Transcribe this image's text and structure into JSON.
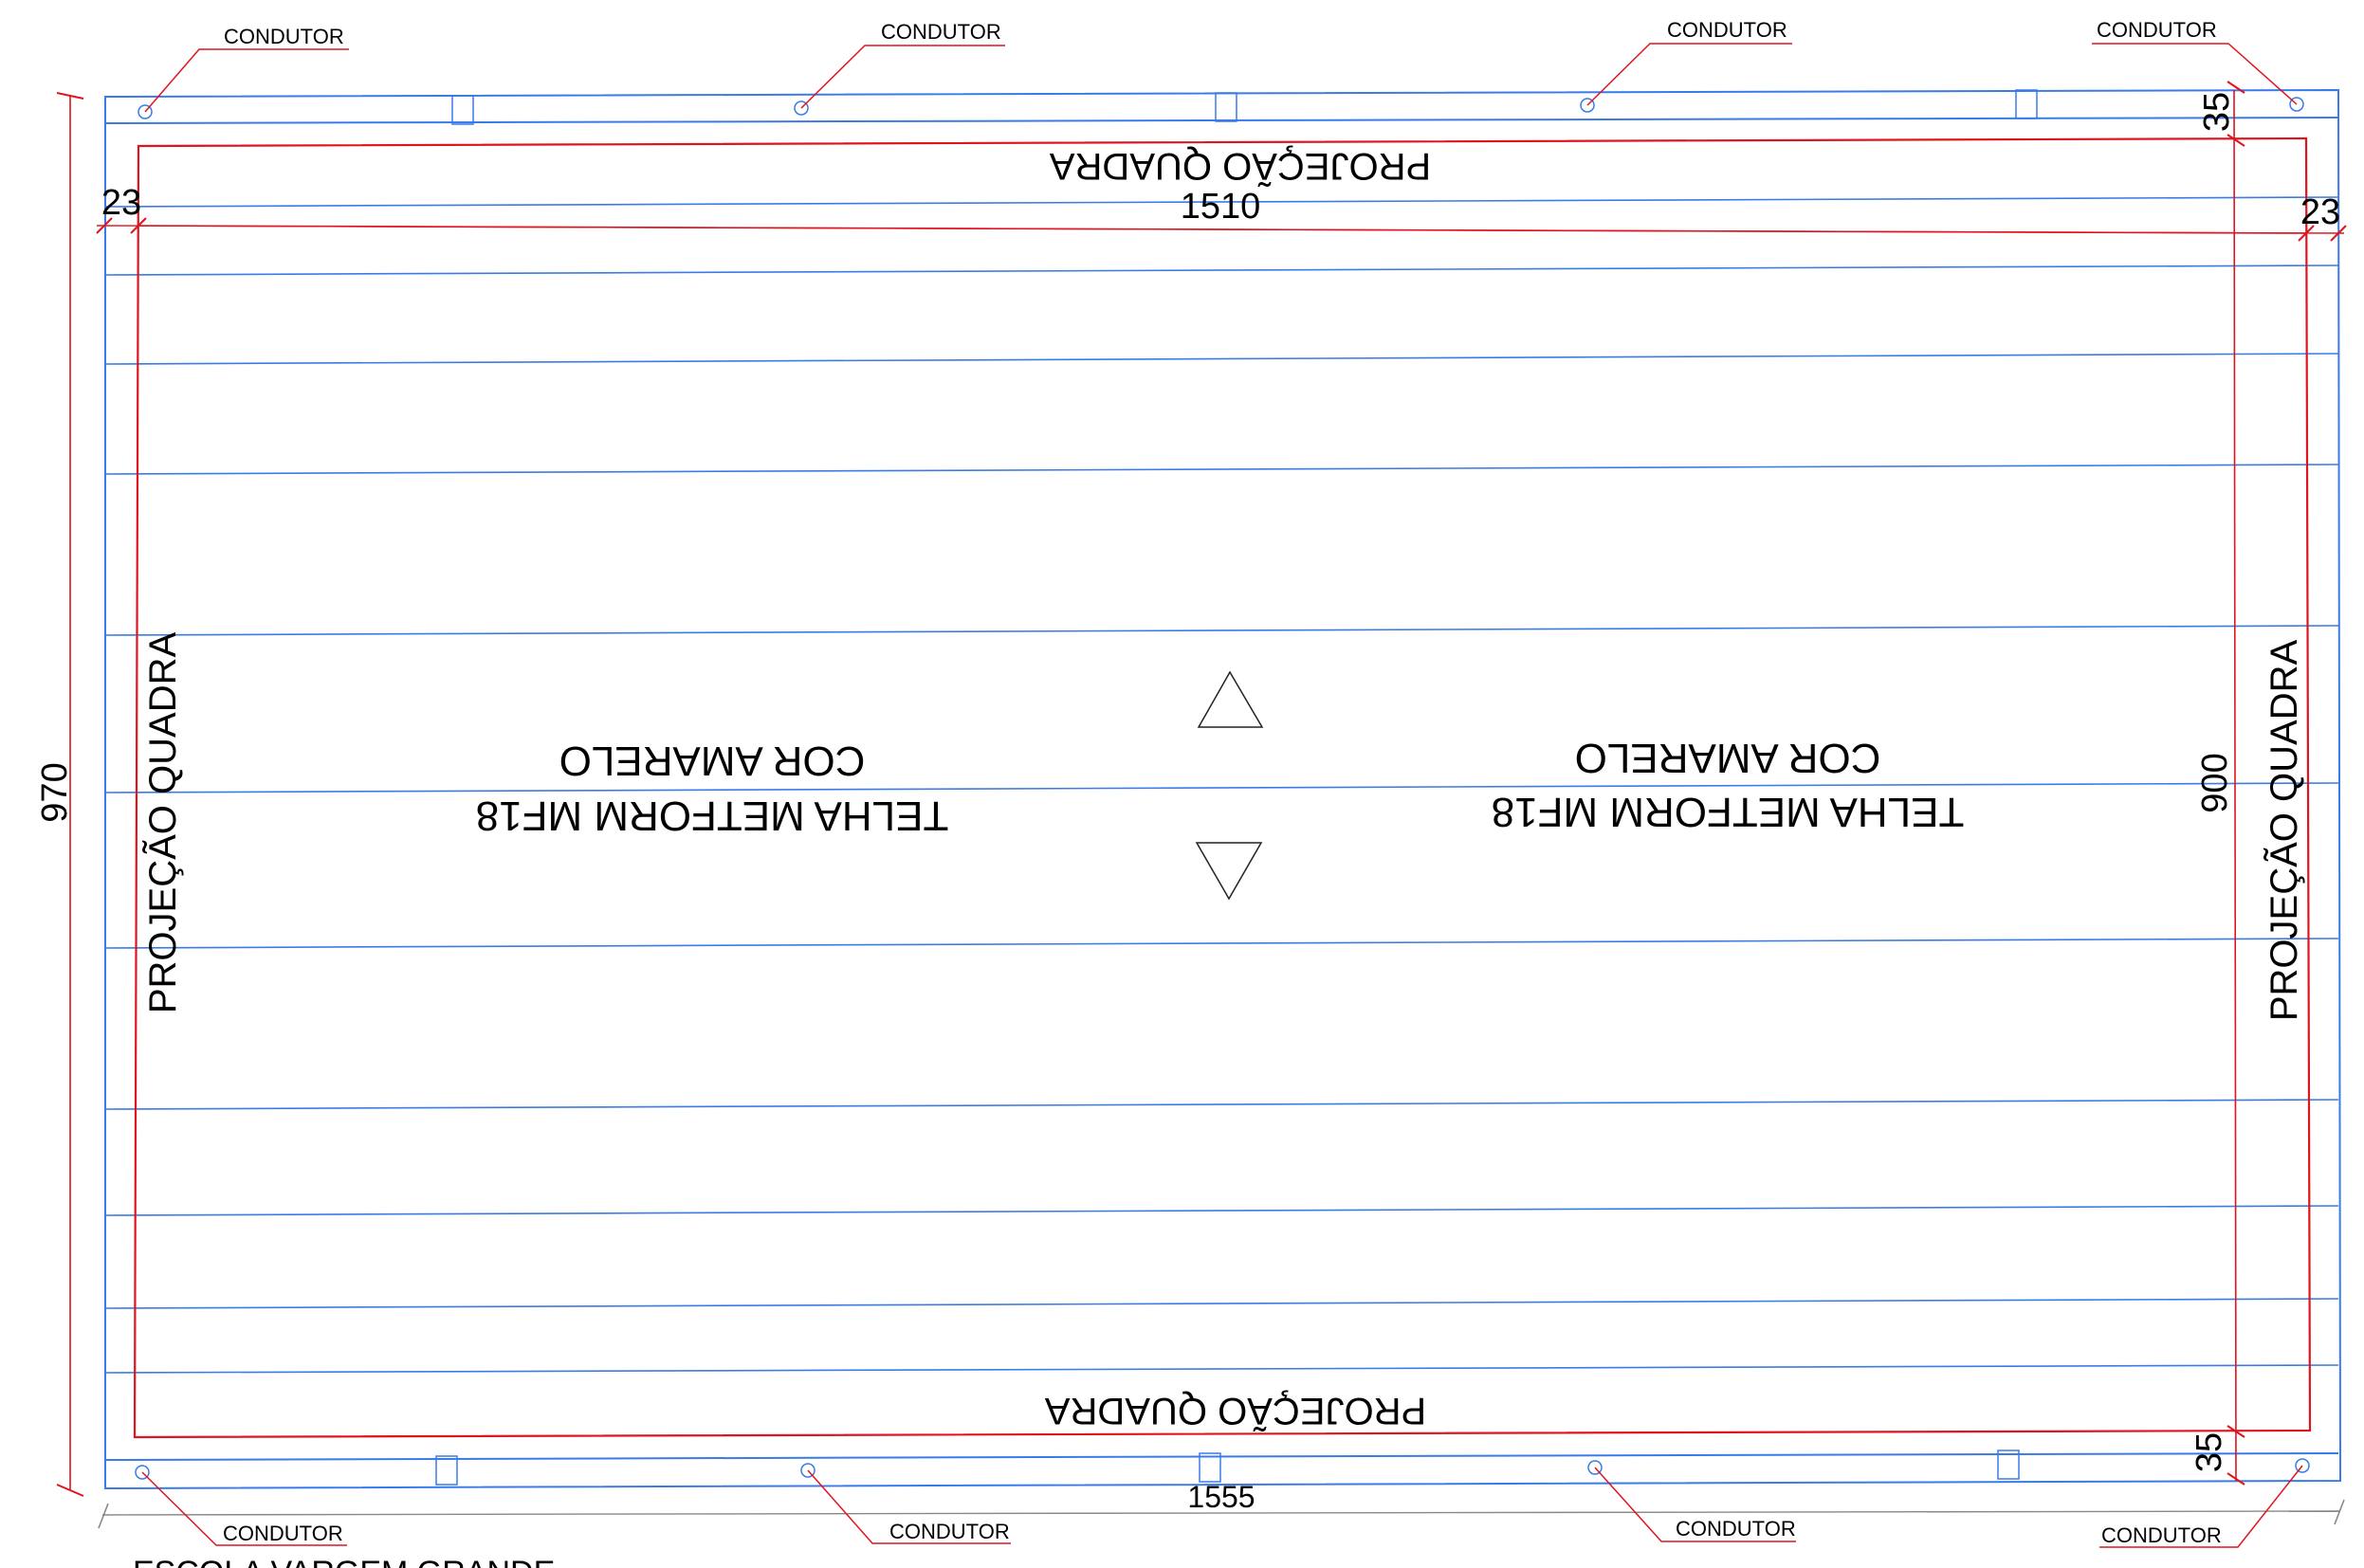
{
  "drawing": {
    "condutor_label": "CONDUTOR",
    "projecao_label": "PROJEÇÃO QUADRA",
    "telha_left": {
      "line1": "COR AMARELO",
      "line2": "TELHA METFORM MF18"
    },
    "telha_right": {
      "line1": "COR AMARELO",
      "line2": "TELHA METFORM MF18"
    },
    "dimensions": {
      "total_width": "1555",
      "inner_width": "1510",
      "total_height": "970",
      "inner_height": "900",
      "top_offset": "35",
      "bottom_offset": "35",
      "left_offset": "23",
      "right_offset": "23"
    },
    "footer_title": "ESCOLA VARGEM GRANDE"
  },
  "colors": {
    "roof_lines": "#3a7be8",
    "projection": "#e0141e",
    "dimension": "#e0141e",
    "text": "#000000"
  }
}
